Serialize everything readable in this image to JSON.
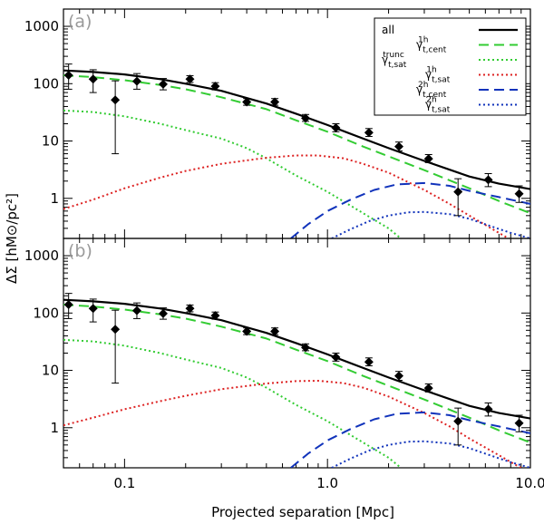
{
  "chart_data": {
    "type": "line",
    "xscale": "log",
    "yscale": "log",
    "xlabel": "Projected separation [Mpc]",
    "ylabel": "ΔΣ [hM⊙/pc²]",
    "xlim": [
      0.05,
      10.0
    ],
    "ylim": [
      0.2,
      2000
    ],
    "xticks": [
      "0.1",
      "1.0",
      "10.0"
    ],
    "yticks": [
      "1",
      "10",
      "100",
      "1000"
    ],
    "legend_position": "top-right",
    "legend": [
      {
        "label": "all",
        "color": "#000000",
        "dash": "solid"
      },
      {
        "label": "γ t,cent 1h",
        "color": "#33cc33",
        "dash": "dashed"
      },
      {
        "label": "γ t,sat trunc",
        "color": "#33cc33",
        "dash": "dotted"
      },
      {
        "label": "γ t,sat 1h",
        "color": "#dd2222",
        "dash": "dotted"
      },
      {
        "label": "γ t,cent 2h",
        "color": "#1133bb",
        "dash": "dashed"
      },
      {
        "label": "γ t,sat 2h",
        "color": "#1133bb",
        "dash": "dotted"
      }
    ],
    "data_points": {
      "x": [
        0.053,
        0.07,
        0.09,
        0.115,
        0.155,
        0.21,
        0.28,
        0.4,
        0.55,
        0.78,
        1.1,
        1.6,
        2.25,
        3.15,
        4.4,
        6.2,
        8.8
      ],
      "y": [
        140,
        120,
        52,
        110,
        98,
        120,
        90,
        48,
        48,
        25,
        17,
        14,
        8,
        4.9,
        1.3,
        2.1,
        1.2
      ],
      "yerr_low": [
        60,
        50,
        46,
        30,
        20,
        15,
        12,
        6,
        6,
        3,
        2.5,
        2,
        1.3,
        0.7,
        0.8,
        0.5,
        0.35
      ],
      "yerr_high": [
        80,
        55,
        60,
        40,
        25,
        18,
        14,
        7,
        7,
        4,
        3,
        2.5,
        1.6,
        0.9,
        0.9,
        0.6,
        0.45
      ]
    },
    "panels": [
      {
        "tag": "(a)",
        "series": [
          {
            "name": "all",
            "color": "#000000",
            "dash": "solid",
            "x": [
              0.05,
              0.07,
              0.1,
              0.15,
              0.2,
              0.3,
              0.5,
              0.7,
              1.0,
              1.5,
              2.0,
              3.0,
              5.0,
              7.0,
              10.0
            ],
            "y": [
              170,
              160,
              145,
              120,
              100,
              75,
              45,
              30,
              19,
              11,
              7.5,
              4.5,
              2.4,
              1.8,
              1.45
            ]
          },
          {
            "name": "γ t,cent 1h",
            "color": "#33cc33",
            "dash": "dashed",
            "x": [
              0.05,
              0.07,
              0.1,
              0.15,
              0.2,
              0.3,
              0.5,
              0.7,
              1.0,
              1.5,
              2.0,
              3.0,
              5.0,
              7.0,
              10.0
            ],
            "y": [
              140,
              130,
              115,
              95,
              80,
              58,
              36,
              23,
              14.5,
              8,
              5.4,
              3.1,
              1.5,
              0.9,
              0.55
            ]
          },
          {
            "name": "γ t,sat trunc",
            "color": "#33cc33",
            "dash": "dotted",
            "x": [
              0.05,
              0.07,
              0.1,
              0.15,
              0.2,
              0.3,
              0.4,
              0.5,
              0.7,
              1.0,
              1.5,
              2.0,
              2.3
            ],
            "y": [
              34,
              32,
              27,
              20,
              15.5,
              11,
              7.5,
              5,
              2.5,
              1.3,
              0.55,
              0.3,
              0.2
            ]
          },
          {
            "name": "γ t,sat 1h",
            "color": "#dd2222",
            "dash": "dotted",
            "x": [
              0.05,
              0.07,
              0.1,
              0.15,
              0.2,
              0.3,
              0.5,
              0.7,
              0.9,
              1.2,
              1.5,
              2.0,
              3.0,
              4.0,
              5.0,
              7.0,
              10.0
            ],
            "y": [
              0.65,
              0.95,
              1.5,
              2.3,
              3.0,
              4.0,
              5.1,
              5.6,
              5.6,
              5.0,
              4.0,
              2.8,
              1.4,
              0.8,
              0.5,
              0.25,
              0.12
            ]
          },
          {
            "name": "γ t,cent 2h",
            "color": "#1133bb",
            "dash": "dashed",
            "x": [
              0.66,
              0.8,
              1.0,
              1.3,
              1.7,
              2.2,
              3.0,
              4.0,
              5.0,
              7.0,
              10.0
            ],
            "y": [
              0.2,
              0.35,
              0.6,
              0.95,
              1.4,
              1.75,
              1.85,
              1.65,
              1.35,
              1.05,
              0.8
            ]
          },
          {
            "name": "γ t,sat 2h",
            "color": "#1133bb",
            "dash": "dotted",
            "x": [
              1.05,
              1.3,
              1.6,
              2.0,
              2.5,
              3.0,
              4.0,
              5.0,
              6.5,
              8.0,
              10.0
            ],
            "y": [
              0.2,
              0.29,
              0.4,
              0.5,
              0.57,
              0.58,
              0.53,
              0.44,
              0.32,
              0.25,
              0.2
            ]
          }
        ]
      },
      {
        "tag": "(b)",
        "series": [
          {
            "name": "all",
            "color": "#000000",
            "dash": "solid",
            "x": [
              0.05,
              0.07,
              0.1,
              0.15,
              0.2,
              0.3,
              0.5,
              0.7,
              1.0,
              1.5,
              2.0,
              3.0,
              5.0,
              7.0,
              10.0
            ],
            "y": [
              170,
              160,
              145,
              120,
              100,
              75,
              45,
              30,
              19,
              11,
              7.5,
              4.5,
              2.4,
              1.8,
              1.45
            ]
          },
          {
            "name": "γ t,cent 1h",
            "color": "#33cc33",
            "dash": "dashed",
            "x": [
              0.05,
              0.07,
              0.1,
              0.15,
              0.2,
              0.3,
              0.5,
              0.7,
              1.0,
              1.5,
              2.0,
              3.0,
              5.0,
              7.0,
              10.0
            ],
            "y": [
              140,
              130,
              115,
              95,
              80,
              58,
              36,
              23,
              14.5,
              8,
              5.4,
              3.1,
              1.5,
              0.9,
              0.55
            ]
          },
          {
            "name": "γ t,sat trunc",
            "color": "#33cc33",
            "dash": "dotted",
            "x": [
              0.05,
              0.07,
              0.1,
              0.15,
              0.2,
              0.3,
              0.4,
              0.5,
              0.7,
              1.0,
              1.5,
              2.0,
              2.3
            ],
            "y": [
              34,
              32,
              27,
              20,
              15.5,
              11,
              7.5,
              5,
              2.5,
              1.3,
              0.55,
              0.3,
              0.2
            ]
          },
          {
            "name": "γ t,sat 1h",
            "color": "#dd2222",
            "dash": "dotted",
            "x": [
              0.05,
              0.07,
              0.1,
              0.15,
              0.2,
              0.3,
              0.5,
              0.7,
              0.9,
              1.2,
              1.5,
              2.0,
              3.0,
              4.0,
              5.0,
              7.0,
              10.0
            ],
            "y": [
              1.1,
              1.5,
              2.1,
              2.9,
              3.6,
              4.7,
              5.9,
              6.5,
              6.6,
              6.0,
              5.0,
              3.5,
              1.8,
              1.05,
              0.65,
              0.33,
              0.16
            ]
          },
          {
            "name": "γ t,cent 2h",
            "color": "#1133bb",
            "dash": "dashed",
            "x": [
              0.66,
              0.8,
              1.0,
              1.3,
              1.7,
              2.2,
              3.0,
              4.0,
              5.0,
              7.0,
              10.0
            ],
            "y": [
              0.2,
              0.35,
              0.6,
              0.95,
              1.4,
              1.75,
              1.85,
              1.65,
              1.35,
              1.05,
              0.8
            ]
          },
          {
            "name": "γ t,sat 2h",
            "color": "#1133bb",
            "dash": "dotted",
            "x": [
              1.05,
              1.3,
              1.6,
              2.0,
              2.5,
              3.0,
              4.0,
              5.0,
              6.5,
              8.0,
              10.0
            ],
            "y": [
              0.2,
              0.29,
              0.4,
              0.5,
              0.57,
              0.58,
              0.53,
              0.44,
              0.32,
              0.25,
              0.2
            ]
          }
        ]
      }
    ]
  }
}
